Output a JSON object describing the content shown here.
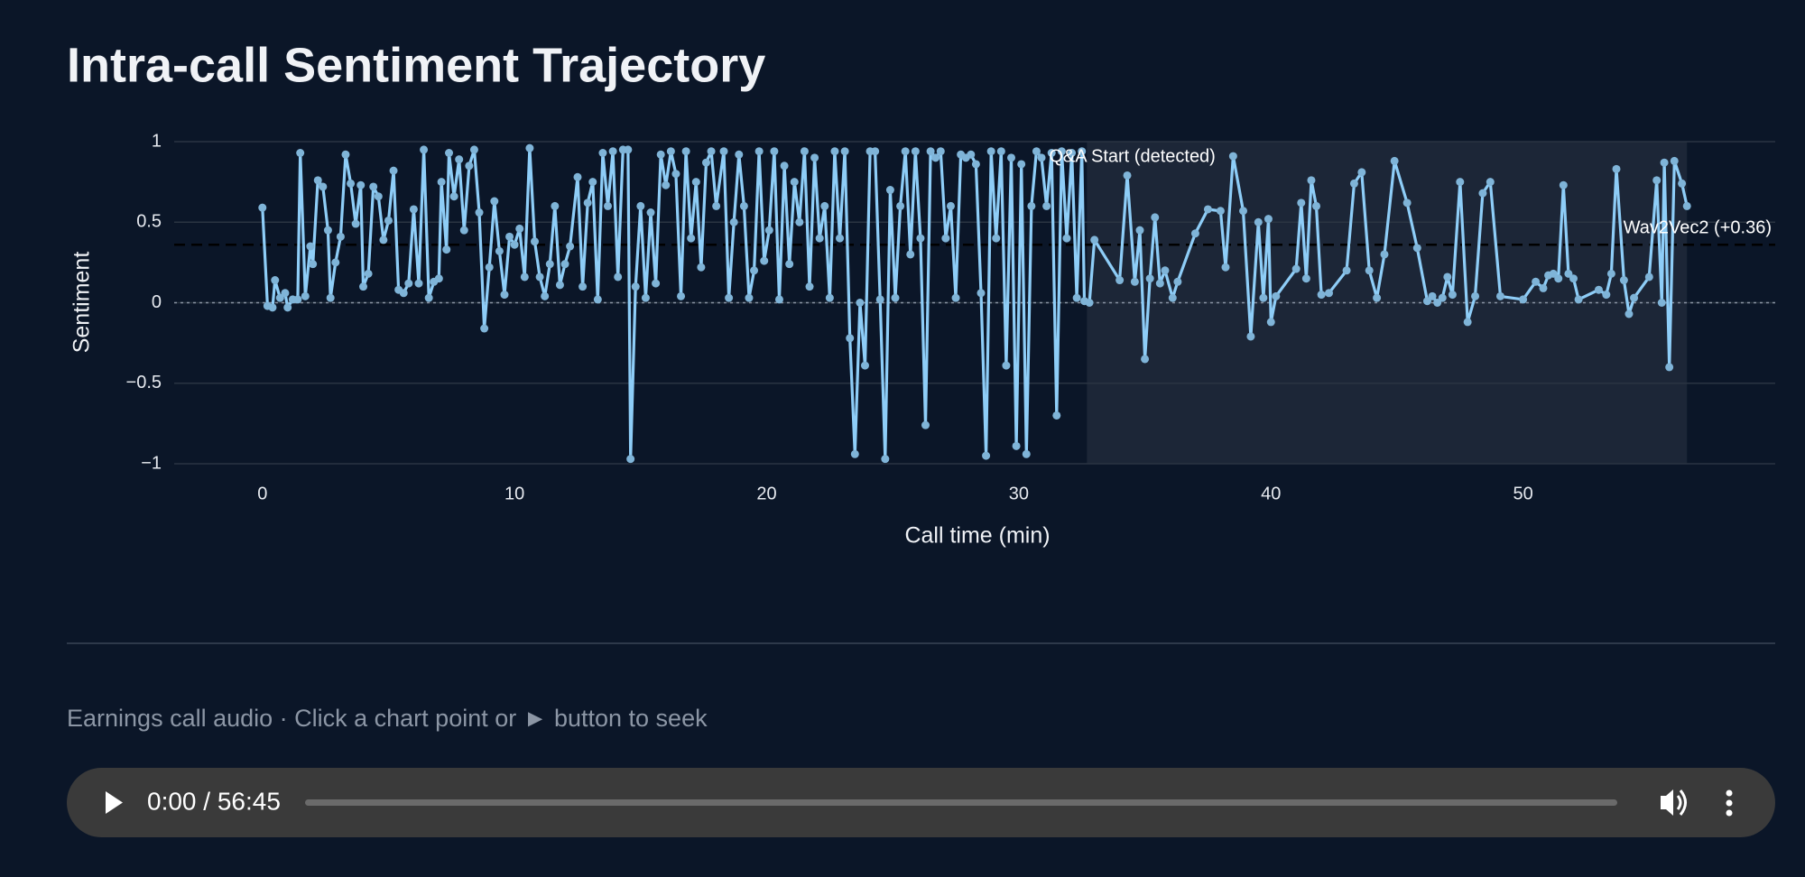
{
  "header": {
    "title": "Intra-call Sentiment Trajectory"
  },
  "chart_data": {
    "type": "line",
    "xlabel": "Call time (min)",
    "ylabel": "Sentiment",
    "color": "#8ecdf7",
    "x": [
      0.0,
      0.2,
      0.4,
      0.5,
      0.7,
      0.9,
      1.0,
      1.2,
      1.4,
      1.5,
      1.7,
      1.9,
      2.0,
      2.2,
      2.4,
      2.6,
      2.7,
      2.9,
      3.1,
      3.3,
      3.5,
      3.7,
      3.9,
      4.0,
      4.2,
      4.4,
      4.6,
      4.8,
      5.0,
      5.2,
      5.4,
      5.6,
      5.8,
      6.0,
      6.2,
      6.4,
      6.6,
      6.8,
      7.0,
      7.1,
      7.3,
      7.4,
      7.6,
      7.8,
      8.0,
      8.2,
      8.4,
      8.6,
      8.8,
      9.0,
      9.2,
      9.4,
      9.6,
      9.8,
      10.0,
      10.2,
      10.4,
      10.6,
      10.8,
      11.0,
      11.2,
      11.4,
      11.6,
      11.8,
      12.0,
      12.2,
      12.5,
      12.7,
      12.9,
      13.1,
      13.3,
      13.5,
      13.7,
      13.9,
      14.1,
      14.3,
      14.5,
      14.6,
      14.8,
      15.0,
      15.2,
      15.4,
      15.6,
      15.8,
      16.0,
      16.2,
      16.4,
      16.6,
      16.8,
      17.0,
      17.2,
      17.4,
      17.6,
      17.8,
      18.0,
      18.3,
      18.5,
      18.7,
      18.9,
      19.1,
      19.3,
      19.5,
      19.7,
      19.9,
      20.1,
      20.3,
      20.5,
      20.7,
      20.9,
      21.1,
      21.3,
      21.5,
      21.7,
      21.9,
      22.1,
      22.3,
      22.5,
      22.7,
      22.9,
      23.1,
      23.3,
      23.5,
      23.7,
      23.9,
      24.1,
      24.3,
      24.5,
      24.7,
      24.9,
      25.1,
      25.3,
      25.5,
      25.7,
      25.9,
      26.1,
      26.3,
      26.5,
      26.7,
      26.9,
      27.1,
      27.3,
      27.5,
      27.7,
      27.9,
      28.1,
      28.3,
      28.5,
      28.7,
      28.9,
      29.1,
      29.3,
      29.5,
      29.7,
      29.9,
      30.1,
      30.3,
      30.5,
      30.7,
      30.9,
      31.1,
      31.3,
      31.5,
      31.7,
      31.9,
      32.1,
      32.3,
      32.5,
      32.6,
      32.8,
      33.0,
      34.0,
      34.3,
      34.6,
      34.8,
      35.0,
      35.2,
      35.4,
      35.6,
      35.8,
      36.1,
      36.3,
      37.0,
      37.5,
      38.0,
      38.2,
      38.5,
      38.9,
      39.2,
      39.5,
      39.7,
      39.9,
      40.0,
      40.2,
      41.0,
      41.2,
      41.4,
      41.6,
      41.8,
      42.0,
      42.3,
      43.0,
      43.3,
      43.6,
      43.9,
      44.2,
      44.5,
      44.9,
      45.4,
      45.8,
      46.2,
      46.4,
      46.6,
      46.8,
      47.0,
      47.2,
      47.5,
      47.8,
      48.1,
      48.4,
      48.7,
      49.1,
      50.0,
      50.5,
      50.8,
      51.0,
      51.2,
      51.4,
      51.6,
      51.8,
      52.0,
      52.2,
      53.0,
      53.3,
      53.5,
      53.7,
      54.0,
      54.2,
      54.4,
      55.0,
      55.3,
      55.5,
      55.6,
      55.8,
      56.0,
      56.3,
      56.5
    ],
    "values": [
      0.59,
      -0.02,
      -0.03,
      0.14,
      0.03,
      0.06,
      -0.03,
      0.02,
      0.02,
      0.93,
      0.04,
      0.35,
      0.24,
      0.76,
      0.72,
      0.45,
      0.03,
      0.25,
      0.41,
      0.92,
      0.74,
      0.49,
      0.73,
      0.1,
      0.18,
      0.72,
      0.66,
      0.39,
      0.51,
      0.82,
      0.08,
      0.06,
      0.12,
      0.58,
      0.12,
      0.95,
      0.03,
      0.13,
      0.15,
      0.75,
      0.33,
      0.93,
      0.66,
      0.89,
      0.45,
      0.85,
      0.95,
      0.56,
      -0.16,
      0.22,
      0.63,
      0.32,
      0.05,
      0.41,
      0.36,
      0.46,
      0.16,
      0.96,
      0.38,
      0.16,
      0.04,
      0.24,
      0.6,
      0.11,
      0.24,
      0.35,
      0.78,
      0.1,
      0.62,
      0.75,
      0.02,
      0.93,
      0.6,
      0.94,
      0.16,
      0.95,
      0.95,
      -0.97,
      0.1,
      0.6,
      0.03,
      0.56,
      0.12,
      0.92,
      0.73,
      0.94,
      0.8,
      0.04,
      0.94,
      0.4,
      0.75,
      0.22,
      0.87,
      0.94,
      0.6,
      0.94,
      0.03,
      0.5,
      0.92,
      0.6,
      0.03,
      0.2,
      0.94,
      0.26,
      0.45,
      0.94,
      0.02,
      0.85,
      0.24,
      0.75,
      0.5,
      0.94,
      0.1,
      0.9,
      0.4,
      0.6,
      0.03,
      0.94,
      0.4,
      0.94,
      -0.22,
      -0.94,
      0,
      -0.39,
      0.94,
      0.94,
      0.02,
      -0.97,
      0.7,
      0.03,
      0.6,
      0.94,
      0.3,
      0.94,
      0.4,
      -0.76,
      0.94,
      0.9,
      0.94,
      0.4,
      0.6,
      0.03,
      0.92,
      0.9,
      0.92,
      0.86,
      0.06,
      -0.95,
      0.94,
      0.4,
      0.94,
      -0.39,
      0.9,
      -0.89,
      0.86,
      -0.94,
      0.6,
      0.94,
      0.9,
      0.6,
      0.93,
      -0.7,
      0.94,
      0.4,
      0.93,
      0.03,
      0.94,
      0.01,
      0,
      0.39,
      0.14,
      0.79,
      0.13,
      0.45,
      -0.35,
      0.15,
      0.53,
      0.12,
      0.2,
      0.03,
      0.13,
      0.43,
      0.58,
      0.57,
      0.22,
      0.91,
      0.57,
      -0.21,
      0.5,
      0.03,
      0.52,
      -0.12,
      0.04,
      0.21,
      0.62,
      0.15,
      0.76,
      0.6,
      0.05,
      0.06,
      0.2,
      0.74,
      0.81,
      0.2,
      0.03,
      0.3,
      0.88,
      0.62,
      0.34,
      0.01,
      0.04,
      0,
      0.03,
      0.16,
      0.05,
      0.75,
      -0.12,
      0.04,
      0.68,
      0.75,
      0.04,
      0.02,
      0.13,
      0.09,
      0.17,
      0.18,
      0.15,
      0.73,
      0.18,
      0.15,
      0.02,
      0.08,
      0.05,
      0.18,
      0.83,
      0.14,
      -0.07,
      0.03,
      0.16,
      0.76,
      0,
      0.87,
      -0.4,
      0.88,
      0.74,
      0.6
    ],
    "xlim": [
      -3.5,
      60
    ],
    "ylim": [
      -1,
      1
    ],
    "xticks": [
      0,
      10,
      20,
      30,
      40,
      50
    ],
    "yticks": [
      {
        "value": -1,
        "label": "−1"
      },
      {
        "value": -0.5,
        "label": "−0.5"
      },
      0,
      0.5,
      1
    ],
    "grid": true,
    "region": {
      "x0": 32.7,
      "x1": 56.5,
      "label": "Q&A Start (detected)"
    },
    "reference_lines": [
      {
        "value": 0.36,
        "label": "Wav2Vec2 (+0.36)",
        "style": "dash"
      },
      {
        "value": 0,
        "style": "dot"
      }
    ]
  },
  "caption": "Earnings call audio · Click a chart point or ► button to seek",
  "player": {
    "time": "0:00 / 56:45"
  }
}
